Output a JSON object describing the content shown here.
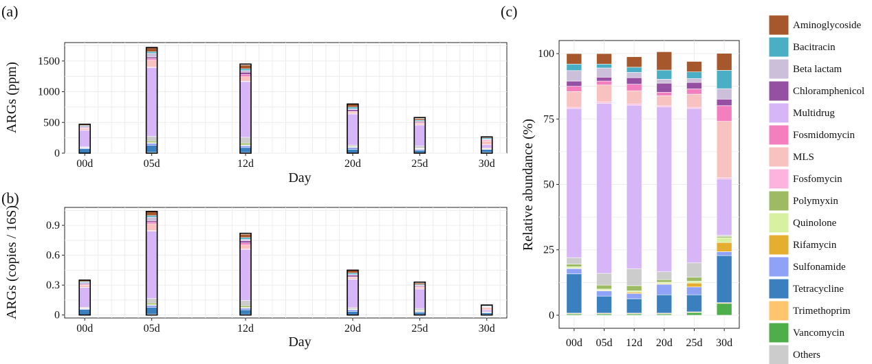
{
  "colors": {
    "Aminoglycoside": "#A6572B",
    "Bacitracin": "#4AAFC5",
    "Beta lactam": "#CBBFD9",
    "Chloramphenicol": "#954FA3",
    "Multidrug": "#D6B6F7",
    "Fosmidomycin": "#F37FBE",
    "MLS": "#F8C2C0",
    "Fosfomycin": "#FCB3DE",
    "Polymyxin": "#9CBB62",
    "Quinolone": "#D8F1A0",
    "Rifamycin": "#E6AE2F",
    "Sulfonamide": "#8FA2F7",
    "Tetracycline": "#3A7FBE",
    "Trimethoprim": "#FEC56E",
    "Vancomycin": "#4DAE4A",
    "Others": "#CCCCCC"
  },
  "legend": [
    "Aminoglycoside",
    "Bacitracin",
    "Beta lactam",
    "Chloramphenicol",
    "Multidrug",
    "Fosmidomycin",
    "MLS",
    "Fosfomycin",
    "Polymyxin",
    "Quinolone",
    "Rifamycin",
    "Sulfonamide",
    "Tetracycline",
    "Trimethoprim",
    "Vancomycin",
    "Others"
  ],
  "chart_data": [
    {
      "panel": "(a)",
      "type": "bar",
      "stacked": true,
      "xlabel": "Day",
      "ylabel": "ARGs (ppm)",
      "ylim": [
        0,
        1800
      ],
      "yticks": [
        0,
        500,
        1000,
        1500
      ],
      "xticks": [
        "00d",
        "05d",
        "12d",
        "20d",
        "25d",
        "30d"
      ],
      "xdays": [
        0,
        5,
        12,
        20,
        25,
        30
      ],
      "xlim": [
        -1.5,
        31.5
      ],
      "categories": [
        "00d",
        "05d",
        "12d",
        "20d",
        "25d",
        "30d"
      ],
      "totals": [
        470,
        1720,
        1450,
        800,
        580,
        265
      ]
    },
    {
      "panel": "(b)",
      "type": "bar",
      "stacked": true,
      "xlabel": "Day",
      "ylabel": "ARGs (copies / 16S)",
      "ylim": [
        -0.03,
        1.08
      ],
      "yticks": [
        0,
        0.3,
        0.6,
        0.9
      ],
      "ytick_labels": [
        "0",
        "0.3",
        "0.6",
        "0.9"
      ],
      "xticks": [
        "00d",
        "05d",
        "12d",
        "20d",
        "25d",
        "30d"
      ],
      "xdays": [
        0,
        5,
        12,
        20,
        25,
        30
      ],
      "xlim": [
        -1.5,
        31.5
      ],
      "categories": [
        "00d",
        "05d",
        "12d",
        "20d",
        "25d",
        "30d"
      ],
      "totals": [
        0.35,
        1.04,
        0.82,
        0.45,
        0.33,
        0.1
      ]
    },
    {
      "panel": "(c)",
      "type": "bar",
      "stacked": true,
      "ylabel": "Relative abundance (%)",
      "ylim": [
        -5,
        105
      ],
      "yticks": [
        0,
        25,
        50,
        75,
        100
      ],
      "categories": [
        "00d",
        "05d",
        "12d",
        "20d",
        "25d",
        "30d"
      ],
      "series": [
        {
          "name": "Vancomycin",
          "values": [
            0.5,
            0.5,
            0.5,
            0.5,
            1.0,
            4.5
          ]
        },
        {
          "name": "Trimethoprim",
          "values": [
            0.3,
            0.3,
            0.3,
            0.3,
            0.3,
            0.3
          ]
        },
        {
          "name": "Tetracycline",
          "values": [
            15,
            6.5,
            5.5,
            7,
            6.5,
            18
          ]
        },
        {
          "name": "Sulfonamide",
          "values": [
            2,
            2,
            2,
            4,
            3,
            1.5
          ]
        },
        {
          "name": "Rifamycin",
          "values": [
            0.2,
            0.2,
            0.5,
            0.3,
            1.5,
            3.5
          ]
        },
        {
          "name": "Quinolone",
          "values": [
            0.5,
            0.5,
            0.5,
            0.5,
            0.7,
            1.8
          ]
        },
        {
          "name": "Polymyxin",
          "values": [
            1,
            1.5,
            2,
            1,
            1.5,
            0.5
          ]
        },
        {
          "name": "Others",
          "values": [
            2.5,
            4.5,
            6.5,
            3,
            5.5,
            0.5
          ]
        },
        {
          "name": "Multidrug",
          "values": [
            57,
            65,
            62.5,
            63,
            59,
            21.5
          ]
        },
        {
          "name": "Fosfomycin",
          "values": [
            0.5,
            0.5,
            0.5,
            0.5,
            0.5,
            0.5
          ]
        },
        {
          "name": "MLS",
          "values": [
            6,
            6.5,
            5,
            3.8,
            5,
            21.5
          ]
        },
        {
          "name": "Fosmidomycin",
          "values": [
            2,
            1.5,
            2.5,
            1.3,
            2,
            6
          ]
        },
        {
          "name": "Chloramphenicol",
          "values": [
            2,
            1.5,
            2.5,
            3.5,
            2.5,
            2.5
          ]
        },
        {
          "name": "Beta lactam",
          "values": [
            4,
            3.5,
            2,
            1.5,
            1.5,
            4
          ]
        },
        {
          "name": "Bacitracin",
          "values": [
            2.5,
            1.5,
            2,
            3.5,
            2.5,
            7
          ]
        },
        {
          "name": "Aminoglycoside",
          "values": [
            4,
            4,
            4,
            7,
            4,
            6.5
          ]
        }
      ]
    }
  ]
}
